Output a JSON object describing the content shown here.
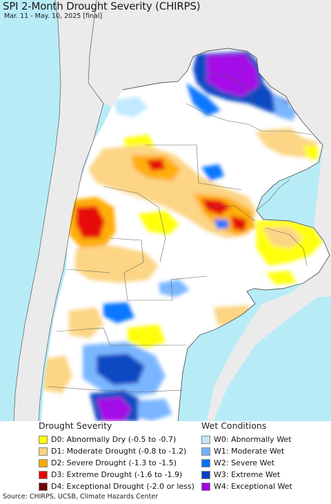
{
  "header": {
    "title": "SPI 2-Month Drought Severity (CHIRPS)",
    "subtitle": "Mar. 11 - May. 10, 2025 [final]"
  },
  "legend": {
    "drought": {
      "heading": "Drought Severity",
      "items": [
        {
          "label": "D0: Abnormally Dry (-0.5 to -0.7)",
          "color": "#ffff00"
        },
        {
          "label": "D1: Moderate Drought (-0.8 to -1.2)",
          "color": "#fcd37f"
        },
        {
          "label": "D2: Severe Drought (-1.3 to -1.5)",
          "color": "#ffaa00"
        },
        {
          "label": "D3: Extreme Drought (-1.6 to -1.9)",
          "color": "#e60000"
        },
        {
          "label": "D4: Exceptional Drought (-2.0 or less)",
          "color": "#730000"
        }
      ]
    },
    "wet": {
      "heading": "Wet Conditions",
      "items": [
        {
          "label": "W0: Abnormally Wet",
          "color": "#bee8ff"
        },
        {
          "label": "W1: Moderate Wet",
          "color": "#73b2ff"
        },
        {
          "label": "W2: Severe Wet",
          "color": "#0070ff"
        },
        {
          "label": "W3: Extreme Wet",
          "color": "#0040c0"
        },
        {
          "label": "W4: Exceptional Wet",
          "color": "#a000e6"
        }
      ]
    }
  },
  "map_colors": {
    "ocean": "#b7ecf7",
    "outside_land": "#ebebeb",
    "region_land": "#ffffff",
    "borders": "#555555"
  },
  "footer": {
    "source": "Source: CHIRPS, UCSB, Climate Hazards Center"
  }
}
